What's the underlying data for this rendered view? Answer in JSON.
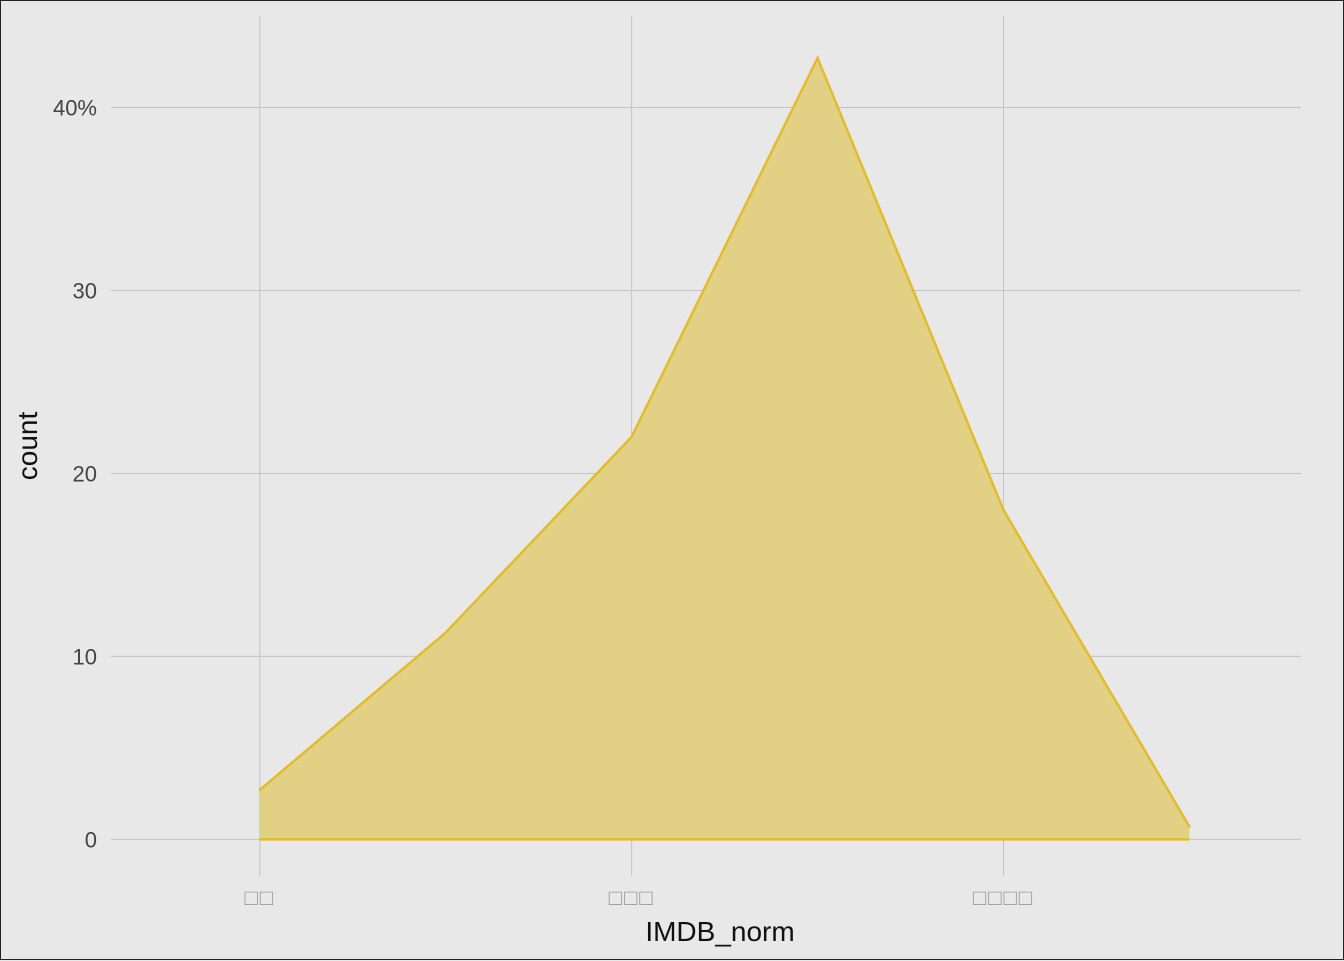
{
  "chart_data": {
    "type": "area",
    "title": "",
    "xlabel": "IMDB_norm",
    "ylabel": "count",
    "x_tick_labels": [
      "□□",
      "□□□",
      "□□□□"
    ],
    "y_tick_labels": [
      "0",
      "10",
      "20",
      "30",
      "40%"
    ],
    "y_ticks": [
      0,
      10,
      20,
      30,
      40
    ],
    "xlim": [
      -0.4,
      2.8
    ],
    "ylim": [
      -2,
      45
    ],
    "x_ticks": [
      0,
      1,
      2
    ],
    "grid": true,
    "colors": {
      "fill": "#e2d185",
      "line": "#e2bc2c",
      "background": "#e8e8e8",
      "grid": "#c4c4c4"
    },
    "series": [
      {
        "x": [
          0,
          0.5,
          1,
          1.5,
          2,
          2.5
        ],
        "y": [
          2.7,
          11.3,
          22.0,
          42.7,
          18.0,
          0.7
        ]
      }
    ]
  }
}
